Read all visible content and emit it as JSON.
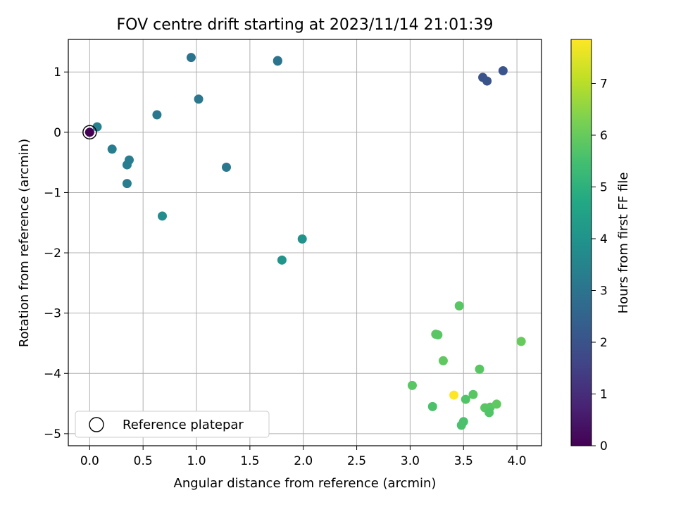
{
  "chart_data": {
    "type": "scatter",
    "title": "FOV centre drift starting at 2023/11/14 21:01:39",
    "xlabel": "Angular distance from reference (arcmin)",
    "ylabel": "Rotation from reference (arcmin)",
    "xlim": [
      -0.2,
      4.23
    ],
    "ylim": [
      -5.2,
      1.54
    ],
    "xticks": [
      "0.0",
      "0.5",
      "1.0",
      "1.5",
      "2.0",
      "2.5",
      "3.0",
      "3.5",
      "4.0"
    ],
    "xtick_values": [
      0,
      0.5,
      1,
      1.5,
      2,
      2.5,
      3,
      3.5,
      4
    ],
    "yticks": [
      "−5",
      "−4",
      "−3",
      "−2",
      "−1",
      "0",
      "1"
    ],
    "ytick_values": [
      -5,
      -4,
      -3,
      -2,
      -1,
      0,
      1
    ],
    "grid": true,
    "legend": {
      "position": "lower-left",
      "entries": [
        "Reference platepar"
      ]
    },
    "colorbar": {
      "label": "Hours from first FF file",
      "colormap": "viridis",
      "range": [
        0,
        7.85
      ],
      "ticks": [
        "0",
        "1",
        "2",
        "3",
        "4",
        "5",
        "6",
        "7"
      ],
      "tick_values": [
        0,
        1,
        2,
        3,
        4,
        5,
        6,
        7
      ]
    },
    "reference_point": {
      "x": 0,
      "y": 0
    },
    "points": [
      {
        "x": 0.0,
        "y": 0.0,
        "hours": 0.0
      },
      {
        "x": 3.68,
        "y": 0.91,
        "hours": 2.0
      },
      {
        "x": 3.72,
        "y": 0.85,
        "hours": 2.0
      },
      {
        "x": 3.87,
        "y": 1.02,
        "hours": 2.05
      },
      {
        "x": 0.95,
        "y": 1.24,
        "hours": 3.0
      },
      {
        "x": 1.76,
        "y": 1.18,
        "hours": 3.0
      },
      {
        "x": 1.76,
        "y": 1.19,
        "hours": 3.0
      },
      {
        "x": 1.02,
        "y": 0.55,
        "hours": 3.1
      },
      {
        "x": 0.63,
        "y": 0.29,
        "hours": 3.15
      },
      {
        "x": 0.07,
        "y": 0.09,
        "hours": 3.4
      },
      {
        "x": 0.21,
        "y": -0.28,
        "hours": 3.3
      },
      {
        "x": 0.37,
        "y": -0.46,
        "hours": 3.3
      },
      {
        "x": 0.35,
        "y": -0.54,
        "hours": 3.3
      },
      {
        "x": 0.35,
        "y": -0.85,
        "hours": 3.3
      },
      {
        "x": 1.28,
        "y": -0.58,
        "hours": 3.1
      },
      {
        "x": 0.68,
        "y": -1.39,
        "hours": 3.8
      },
      {
        "x": 1.99,
        "y": -1.77,
        "hours": 4.0
      },
      {
        "x": 1.8,
        "y": -2.12,
        "hours": 4.05
      },
      {
        "x": 3.46,
        "y": -2.88,
        "hours": 5.8
      },
      {
        "x": 3.24,
        "y": -3.35,
        "hours": 5.8
      },
      {
        "x": 3.26,
        "y": -3.36,
        "hours": 5.8
      },
      {
        "x": 3.31,
        "y": -3.79,
        "hours": 5.9
      },
      {
        "x": 4.04,
        "y": -3.47,
        "hours": 6.0
      },
      {
        "x": 3.65,
        "y": -3.93,
        "hours": 5.8
      },
      {
        "x": 3.02,
        "y": -4.2,
        "hours": 5.8
      },
      {
        "x": 3.59,
        "y": -4.35,
        "hours": 5.8
      },
      {
        "x": 3.52,
        "y": -4.43,
        "hours": 5.7
      },
      {
        "x": 3.21,
        "y": -4.55,
        "hours": 5.6
      },
      {
        "x": 3.7,
        "y": -4.57,
        "hours": 5.8
      },
      {
        "x": 3.75,
        "y": -4.56,
        "hours": 5.8
      },
      {
        "x": 3.81,
        "y": -4.51,
        "hours": 5.9
      },
      {
        "x": 3.74,
        "y": -4.65,
        "hours": 5.7
      },
      {
        "x": 3.5,
        "y": -4.8,
        "hours": 5.6
      },
      {
        "x": 3.48,
        "y": -4.86,
        "hours": 5.6
      },
      {
        "x": 3.41,
        "y": -4.36,
        "hours": 7.85
      }
    ]
  }
}
